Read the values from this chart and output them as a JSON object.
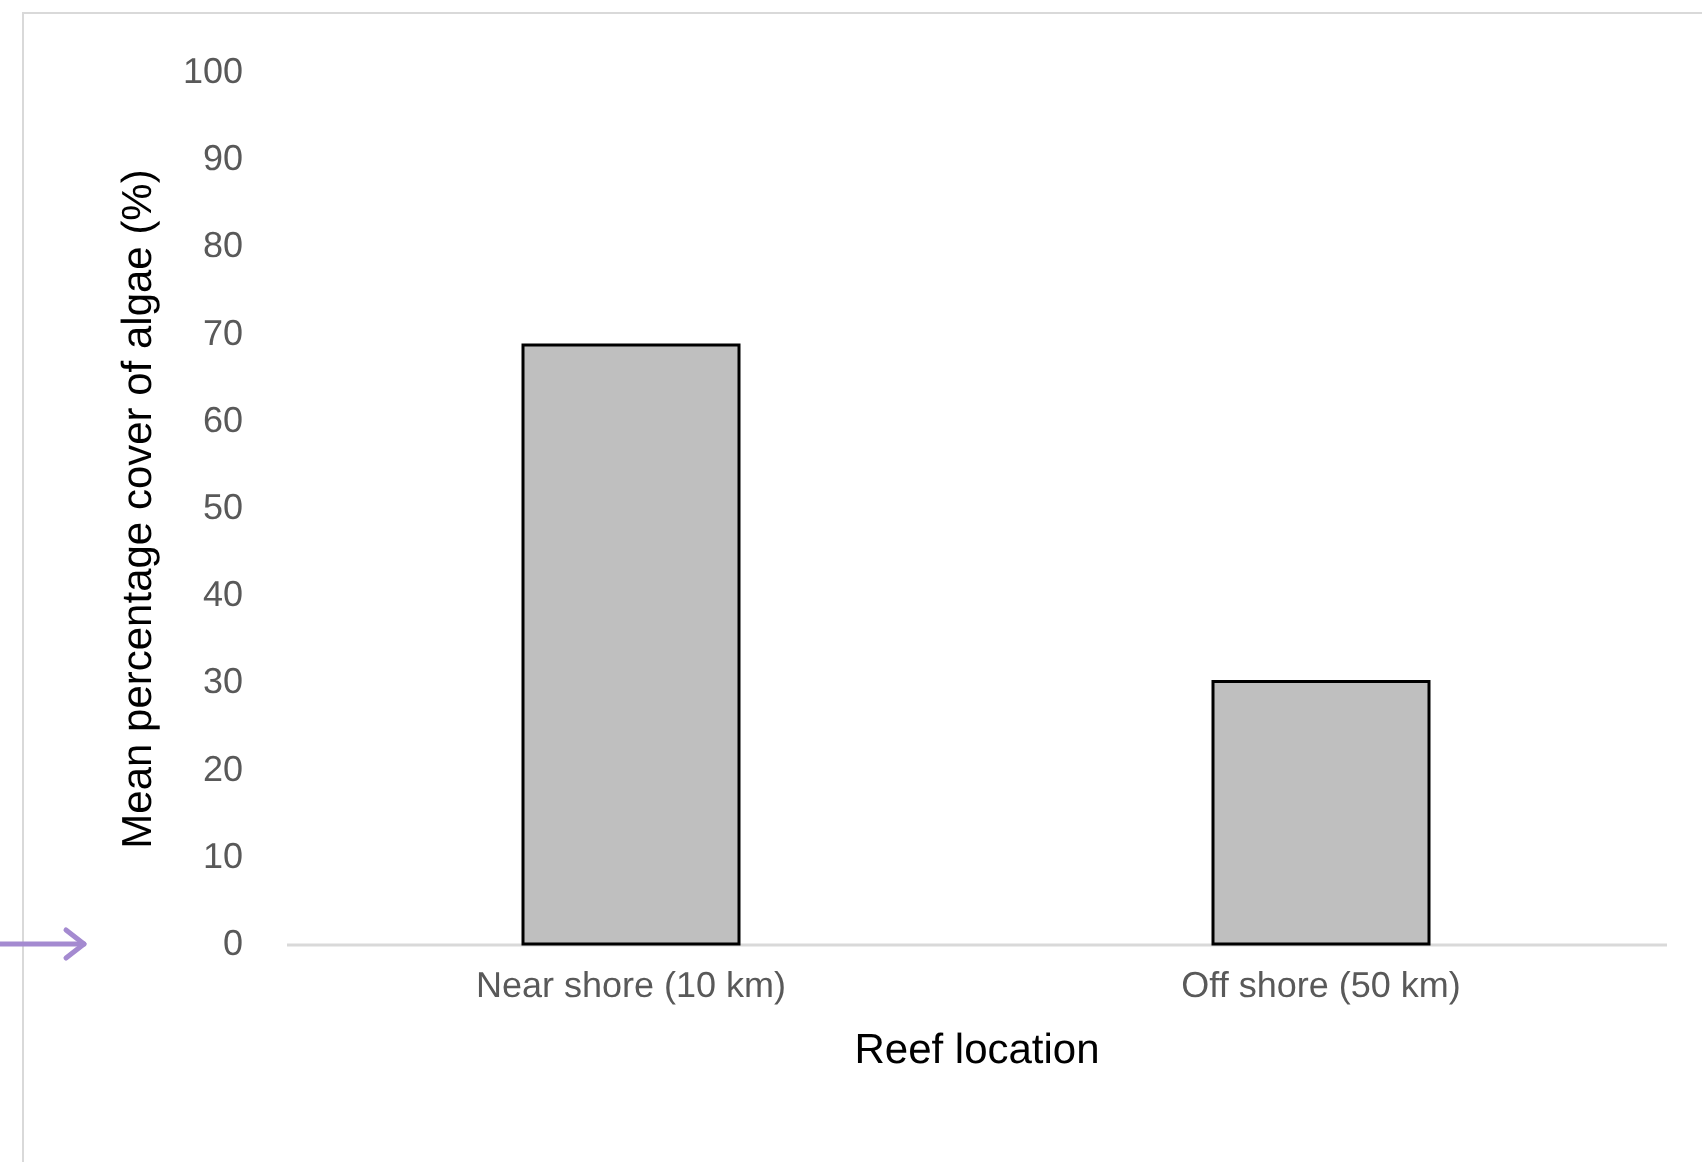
{
  "chart_data": {
    "type": "bar",
    "categories": [
      "Near shore (10 km)",
      "Off shore (50 km)"
    ],
    "values": [
      68.7,
      30.1
    ],
    "color": "#bfbfbf",
    "xlabel": "Reef location",
    "ylabel": "Mean percentage cover of algae (%)",
    "ylim": [
      0,
      100
    ],
    "yticks": [
      0,
      10,
      20,
      30,
      40,
      50,
      60,
      70,
      80,
      90,
      100
    ],
    "grid": false
  }
}
